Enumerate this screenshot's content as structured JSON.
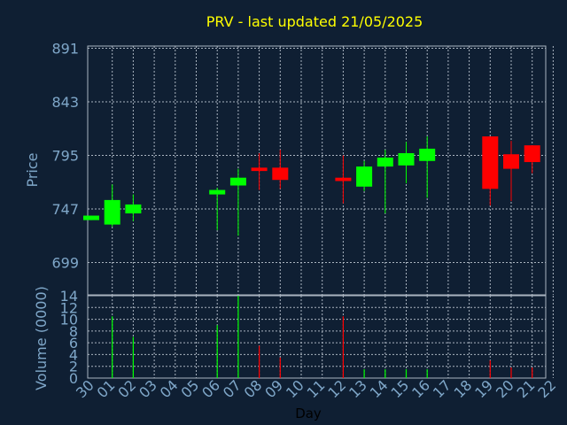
{
  "chart_data": {
    "type": "candlestick",
    "title": "PRV - last updated 21/05/2025",
    "xlabel": "Day",
    "price_panel": {
      "ylabel": "Price",
      "yticks": [
        699,
        747,
        795,
        843,
        891
      ],
      "ylim": [
        670,
        893
      ],
      "grid": true
    },
    "volume_panel": {
      "ylabel": "Volume (0000)",
      "yticks": [
        0,
        2,
        4,
        6,
        8,
        10,
        12,
        14
      ],
      "ylim": [
        0,
        14
      ],
      "grid": true
    },
    "x_tick_labels": [
      "30",
      "01",
      "02",
      "03",
      "04",
      "05",
      "06",
      "07",
      "08",
      "09",
      "10",
      "11",
      "12",
      "13",
      "14",
      "15",
      "16",
      "17",
      "18",
      "19",
      "20",
      "21",
      "22"
    ],
    "colors": {
      "up": "#00ff00",
      "down": "#ff0000",
      "title": "#ffff00",
      "background": "#0f1f33",
      "tick": "#7fa7c9"
    },
    "candles": [
      {
        "day": "30",
        "open": 737,
        "high": 741,
        "low": 737,
        "close": 741,
        "volume": 0
      },
      {
        "day": "01",
        "open": 733,
        "high": 769,
        "low": 731,
        "close": 755,
        "volume": 10.5
      },
      {
        "day": "02",
        "open": 743,
        "high": 760,
        "low": 736,
        "close": 751,
        "volume": 7
      },
      {
        "day": "06",
        "open": 760,
        "high": 766,
        "low": 728,
        "close": 764,
        "volume": 9
      },
      {
        "day": "07",
        "open": 768,
        "high": 783,
        "low": 723,
        "close": 775,
        "volume": 14
      },
      {
        "day": "08",
        "open": 784,
        "high": 797,
        "low": 764,
        "close": 781,
        "volume": 5.5
      },
      {
        "day": "09",
        "open": 784,
        "high": 800,
        "low": 765,
        "close": 773,
        "volume": 3.5
      },
      {
        "day": "12",
        "open": 775,
        "high": 795,
        "low": 752,
        "close": 772,
        "volume": 10.5
      },
      {
        "day": "13",
        "open": 767,
        "high": 790,
        "low": 763,
        "close": 785,
        "volume": 1.5
      },
      {
        "day": "14",
        "open": 785,
        "high": 800,
        "low": 743,
        "close": 793,
        "volume": 1.5
      },
      {
        "day": "15",
        "open": 786,
        "high": 807,
        "low": 770,
        "close": 797,
        "volume": 1.5
      },
      {
        "day": "16",
        "open": 790,
        "high": 812,
        "low": 757,
        "close": 801,
        "volume": 1.5
      },
      {
        "day": "19",
        "open": 812,
        "high": 812,
        "low": 750,
        "close": 765,
        "volume": 3
      },
      {
        "day": "20",
        "open": 796,
        "high": 808,
        "low": 754,
        "close": 783,
        "volume": 1.8
      },
      {
        "day": "21",
        "open": 804,
        "high": 804,
        "low": 779,
        "close": 789,
        "volume": 1.8
      }
    ]
  }
}
